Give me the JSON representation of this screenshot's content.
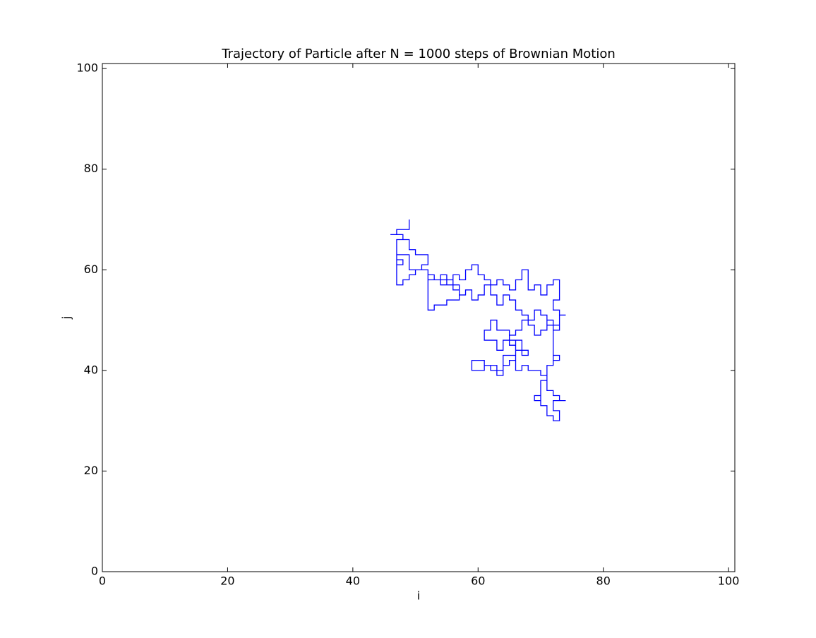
{
  "chart_data": {
    "type": "line",
    "title": "Trajectory of Particle after N = 1000 steps of Brownian Motion",
    "x_label": "i",
    "y_label": "j",
    "xlim": [
      0,
      101
    ],
    "ylim": [
      0,
      101
    ],
    "xticks": [
      0,
      20,
      40,
      60,
      80,
      100
    ],
    "yticks": [
      0,
      20,
      40,
      60,
      80,
      100
    ],
    "grid": false,
    "series": [
      {
        "color": "#0000ff",
        "x": [
          49,
          49,
          47,
          47,
          46,
          48,
          48,
          47,
          47,
          49,
          49,
          52,
          52,
          52,
          53,
          53,
          55,
          55,
          57,
          57,
          55,
          55,
          53,
          53,
          52,
          52,
          50,
          50,
          49,
          49,
          48,
          48,
          47,
          47,
          48,
          48,
          47,
          47,
          49,
          49,
          50,
          50,
          52,
          52,
          51,
          51,
          52,
          52,
          54,
          54,
          56,
          56,
          57,
          57,
          58,
          58,
          59,
          59,
          60,
          60,
          61,
          61,
          62,
          62,
          63,
          63,
          64,
          64,
          65,
          65,
          66,
          66,
          67,
          67,
          68,
          68,
          69,
          69,
          70,
          70,
          71,
          71,
          72,
          72,
          73,
          73,
          72,
          72,
          73,
          73,
          74,
          73,
          73,
          71,
          71,
          70,
          70,
          69,
          69,
          67,
          67,
          66,
          66,
          65,
          65,
          66,
          66,
          68,
          68,
          67,
          67,
          65,
          65,
          63,
          63,
          62,
          62,
          61,
          61,
          63,
          63,
          64,
          64,
          66,
          66,
          65,
          65,
          64,
          64,
          62,
          62,
          61,
          61,
          59,
          59,
          61,
          61,
          63,
          63,
          64,
          64,
          66,
          66,
          67,
          67,
          68,
          68,
          70,
          70,
          71,
          71,
          72,
          72,
          73,
          73,
          74,
          72,
          72,
          73,
          73,
          72,
          72,
          71,
          71,
          70,
          70,
          69,
          69,
          70,
          70,
          71,
          71,
          72,
          72,
          73,
          73,
          72,
          72,
          73,
          73,
          72,
          72,
          71,
          71,
          70,
          70,
          69,
          69,
          68,
          68,
          67,
          67,
          66,
          66,
          65,
          65,
          64,
          64,
          63,
          63,
          62,
          62,
          61,
          61,
          60,
          60,
          59,
          59,
          58,
          58,
          57,
          57,
          56,
          56,
          55,
          55,
          54,
          54
        ],
        "values": [
          70,
          68,
          68,
          67,
          67,
          67,
          66,
          66,
          63,
          63,
          60,
          60,
          53,
          52,
          52,
          53,
          53,
          54,
          54,
          57,
          57,
          58,
          58,
          59,
          59,
          60,
          60,
          59,
          59,
          58,
          58,
          57,
          57,
          62,
          62,
          61,
          61,
          66,
          66,
          64,
          64,
          63,
          63,
          61,
          61,
          60,
          60,
          58,
          58,
          57,
          57,
          59,
          59,
          58,
          58,
          60,
          60,
          61,
          61,
          59,
          59,
          58,
          58,
          57,
          57,
          58,
          58,
          57,
          57,
          56,
          56,
          58,
          58,
          60,
          60,
          56,
          56,
          57,
          57,
          55,
          55,
          57,
          57,
          58,
          58,
          54,
          54,
          52,
          52,
          51,
          51,
          51,
          49,
          49,
          51,
          51,
          52,
          52,
          50,
          50,
          48,
          48,
          47,
          47,
          45,
          45,
          44,
          44,
          43,
          43,
          46,
          46,
          48,
          48,
          50,
          50,
          48,
          48,
          46,
          46,
          44,
          44,
          46,
          46,
          42,
          42,
          41,
          41,
          40,
          40,
          41,
          41,
          42,
          42,
          40,
          40,
          41,
          41,
          39,
          39,
          43,
          43,
          40,
          40,
          41,
          41,
          40,
          40,
          39,
          39,
          36,
          36,
          35,
          35,
          34,
          34,
          34,
          32,
          32,
          30,
          30,
          31,
          31,
          33,
          33,
          35,
          35,
          34,
          34,
          38,
          38,
          41,
          41,
          43,
          43,
          42,
          42,
          49,
          49,
          48,
          48,
          50,
          50,
          48,
          48,
          47,
          47,
          49,
          49,
          51,
          51,
          52,
          52,
          54,
          54,
          55,
          55,
          53,
          53,
          55,
          55,
          57,
          57,
          55,
          55,
          54,
          54,
          56,
          56,
          55,
          55,
          56,
          56,
          58,
          58,
          59,
          59,
          57
        ]
      }
    ]
  }
}
